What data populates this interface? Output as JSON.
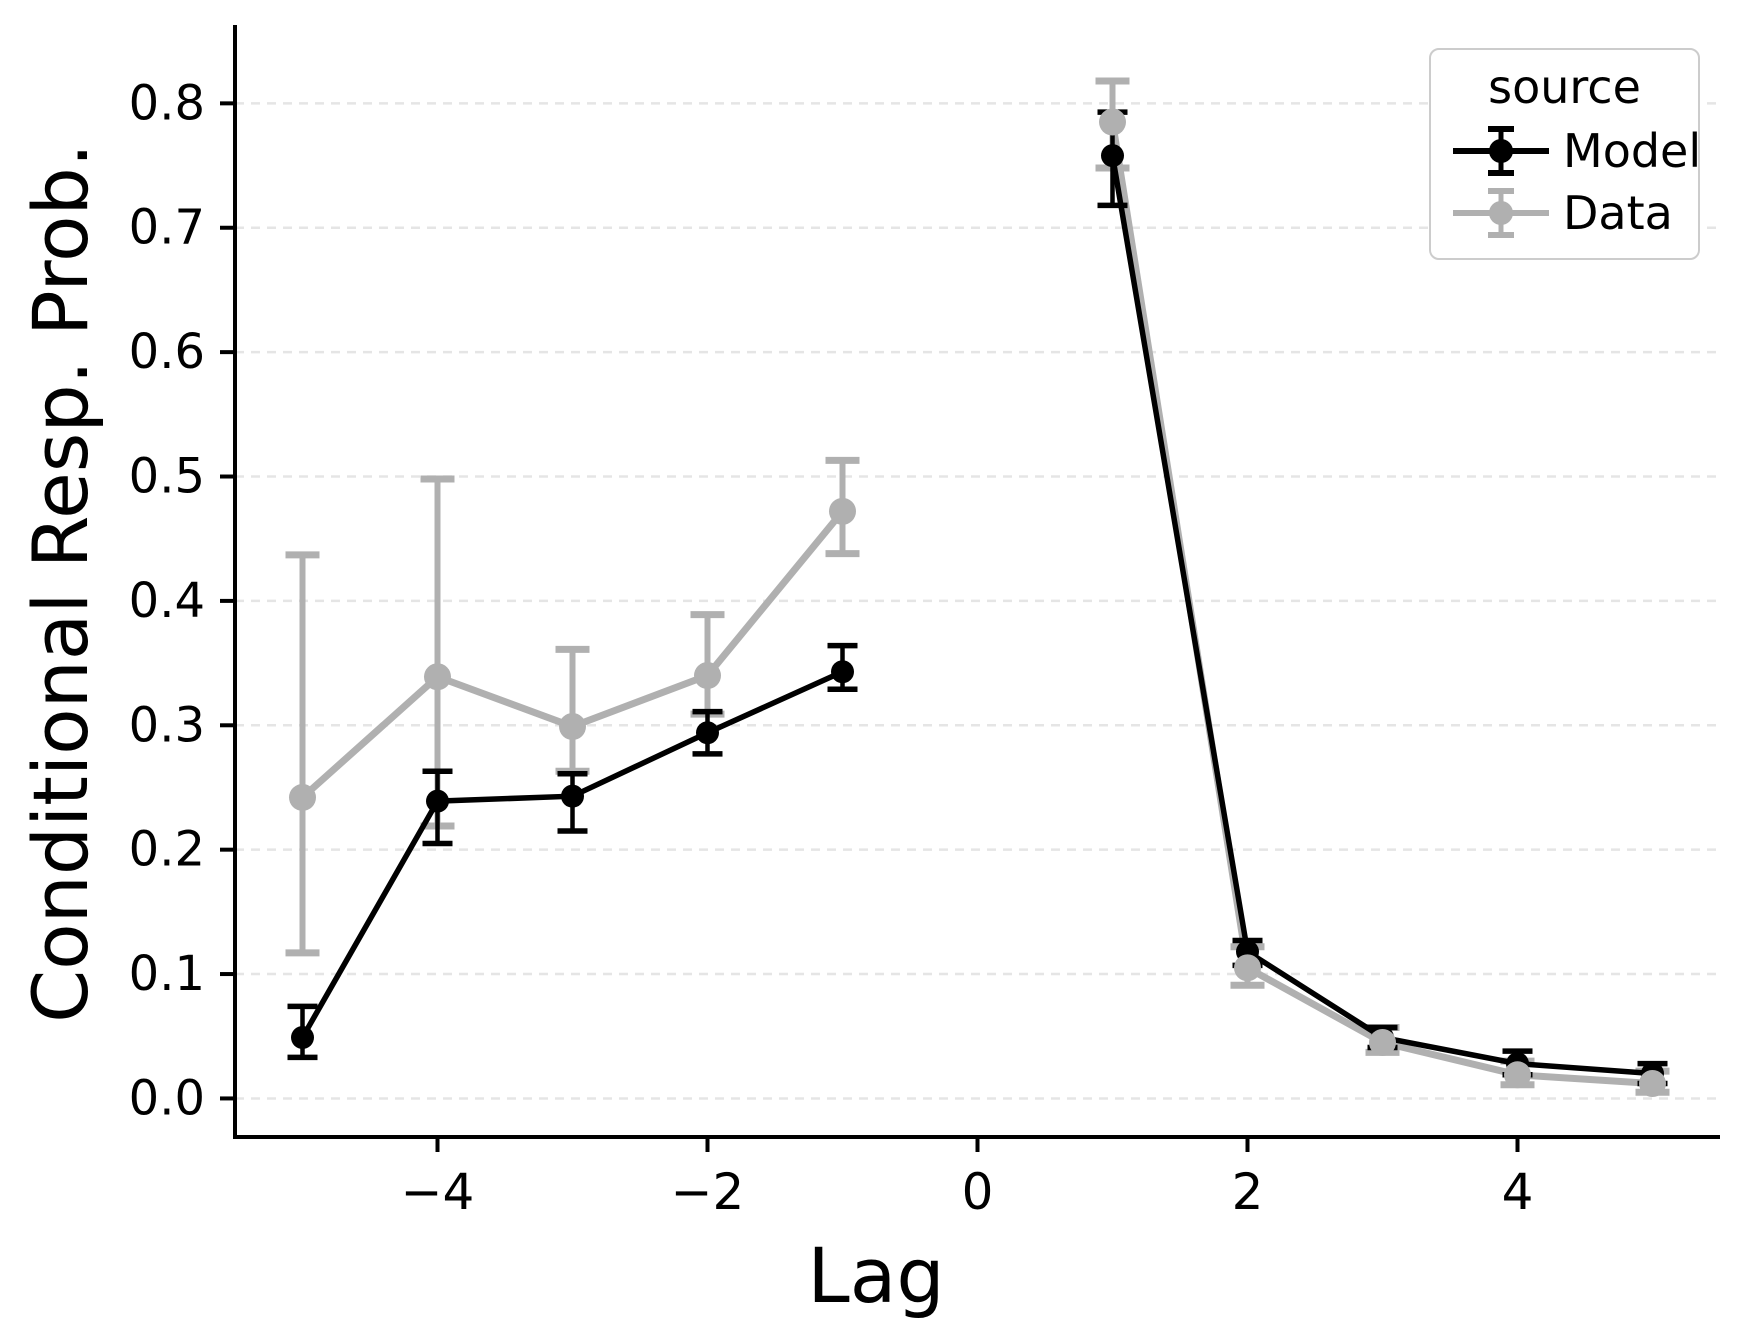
{
  "figure": {
    "background": "#ffffff"
  },
  "chart_data": {
    "type": "line",
    "title": "",
    "xlabel": "Lag",
    "ylabel": "Conditional Resp. Prob.",
    "xlim": [
      -5.5,
      5.5
    ],
    "ylim": [
      -0.031,
      0.863
    ],
    "x_ticks": [
      -4,
      -2,
      0,
      2,
      4
    ],
    "x_tick_labels": [
      "−4",
      "−2",
      "0",
      "2",
      "4"
    ],
    "y_ticks": [
      0.0,
      0.1,
      0.2,
      0.3,
      0.4,
      0.5,
      0.6,
      0.7,
      0.8
    ],
    "y_tick_labels": [
      "0.0",
      "0.1",
      "0.2",
      "0.3",
      "0.4",
      "0.5",
      "0.6",
      "0.7",
      "0.8"
    ],
    "grid": "horizontal-dashed",
    "grid_color": "#e5e5e5",
    "axis_color": "#000000",
    "legend": {
      "title": "source",
      "position": "upper right",
      "entries": [
        {
          "label": "Model",
          "color": "#000000"
        },
        {
          "label": "Data",
          "color": "#b0b0b0"
        }
      ]
    },
    "note": "lines are broken between lag -1 and lag +1 (no point at lag 0)",
    "series": [
      {
        "name": "Model",
        "color": "#000000",
        "x": [
          -5,
          -4,
          -3,
          -2,
          -1,
          1,
          2,
          3,
          4,
          5
        ],
        "y": [
          0.049,
          0.239,
          0.243,
          0.294,
          0.343,
          0.758,
          0.118,
          0.049,
          0.028,
          0.02
        ],
        "ci_low": [
          0.033,
          0.205,
          0.215,
          0.277,
          0.329,
          0.718,
          0.107,
          0.041,
          0.019,
          0.012
        ],
        "ci_high": [
          0.074,
          0.263,
          0.261,
          0.311,
          0.364,
          0.793,
          0.127,
          0.057,
          0.038,
          0.028
        ]
      },
      {
        "name": "Data",
        "color": "#b0b0b0",
        "x": [
          -5,
          -4,
          -3,
          -2,
          -1,
          1,
          2,
          3,
          4,
          5
        ],
        "y": [
          0.242,
          0.339,
          0.299,
          0.34,
          0.472,
          0.785,
          0.105,
          0.045,
          0.019,
          0.012
        ],
        "ci_low": [
          0.117,
          0.219,
          0.263,
          0.309,
          0.438,
          0.748,
          0.091,
          0.037,
          0.011,
          0.005
        ],
        "ci_high": [
          0.437,
          0.498,
          0.361,
          0.389,
          0.513,
          0.818,
          0.122,
          0.057,
          0.03,
          0.022
        ]
      }
    ]
  }
}
